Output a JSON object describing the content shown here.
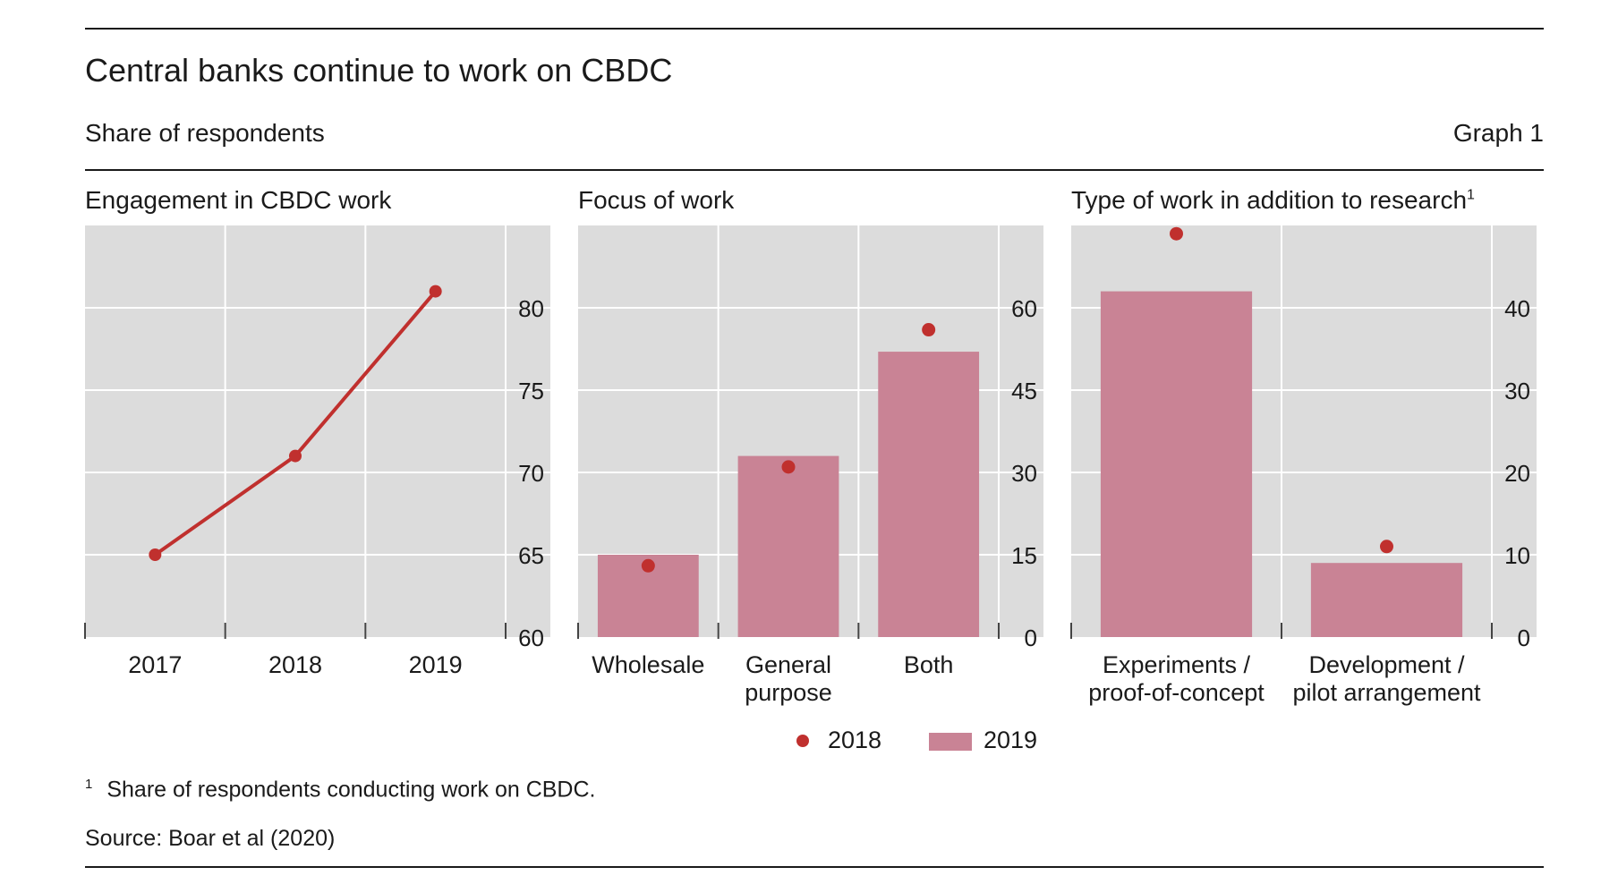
{
  "header": {
    "title": "Central banks continue to work on CBDC",
    "subtitle": "Share of respondents",
    "graph_label": "Graph 1"
  },
  "legend": {
    "dot_label": "2018",
    "bar_label": "2019"
  },
  "footnote": {
    "mark": "1",
    "text": "Share of respondents conducting work on CBDC."
  },
  "source": "Source: Boar et al (2020)",
  "colors": {
    "bar": "#c98395",
    "dot": "#c0302e",
    "line": "#c0302e",
    "plot_bg": "#dcdcdc",
    "grid": "#ffffff"
  },
  "chart_data": [
    {
      "type": "line",
      "title": "Engagement in CBDC work",
      "categories": [
        "2017",
        "2018",
        "2019"
      ],
      "series": [
        {
          "values": [
            65,
            71,
            81
          ]
        }
      ],
      "ylim": [
        60,
        85
      ],
      "yticks": [
        60,
        65,
        70,
        75,
        80
      ],
      "grid": true
    },
    {
      "type": "bar",
      "title": "Focus of work",
      "categories": [
        [
          "Wholesale"
        ],
        [
          "General",
          "purpose"
        ],
        [
          "Both"
        ]
      ],
      "series": [
        {
          "name": "2019",
          "kind": "bar",
          "values": [
            15,
            33,
            52
          ]
        },
        {
          "name": "2018",
          "kind": "dot",
          "values": [
            13,
            31,
            56
          ]
        }
      ],
      "ylim": [
        0,
        75
      ],
      "yticks": [
        0,
        15,
        30,
        45,
        60
      ],
      "grid": true
    },
    {
      "type": "bar",
      "title": "Type of work in addition to research",
      "title_sup": "1",
      "categories": [
        [
          "Experiments /",
          "proof-of-concept"
        ],
        [
          "Development /",
          "pilot arrangement"
        ]
      ],
      "series": [
        {
          "name": "2019",
          "kind": "bar",
          "values": [
            42,
            9
          ]
        },
        {
          "name": "2018",
          "kind": "dot",
          "values": [
            49,
            11
          ]
        }
      ],
      "ylim": [
        0,
        50
      ],
      "yticks": [
        0,
        10,
        20,
        30,
        40
      ],
      "grid": true
    }
  ]
}
